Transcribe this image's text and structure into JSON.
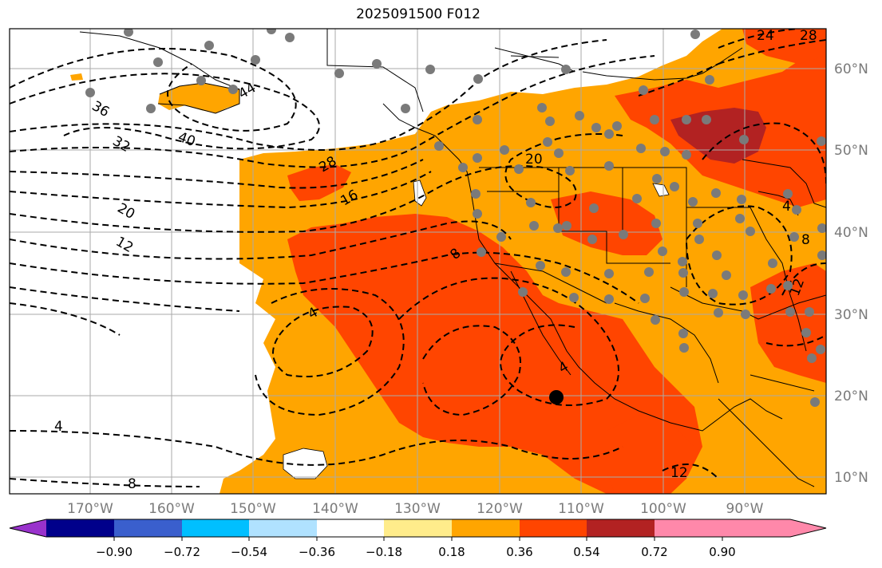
{
  "title": "2025091500 F012",
  "lat_labels": [
    "60°N",
    "50°N",
    "40°N",
    "30°N",
    "20°N",
    "10°N"
  ],
  "lon_labels": [
    "170°W",
    "160°W",
    "150°W",
    "140°W",
    "130°W",
    "120°W",
    "110°W",
    "100°W",
    "90°W"
  ],
  "colorbar": {
    "colors": [
      "#9932cc",
      "#00008b",
      "#3a5fcd",
      "#00bfff",
      "#b0e2ff",
      "#ffffff",
      "#ffec8b",
      "#ffa500",
      "#ff4500",
      "#b22222",
      "#ff88aa"
    ],
    "tick_labels": [
      "−0.90",
      "−0.72",
      "−0.54",
      "−0.36",
      "−0.18",
      "0.18",
      "0.36",
      "0.54",
      "0.72",
      "0.90"
    ]
  },
  "contour_labels": [
    "44",
    "40",
    "36",
    "32",
    "28",
    "20",
    "16",
    "20",
    "12",
    "8",
    "4",
    "4",
    "4",
    "8",
    "12",
    "12",
    "4",
    "8",
    "24",
    "28"
  ],
  "colors": {
    "orange": "#ffa500",
    "red_orange": "#ff4500",
    "dark_red": "#b22222",
    "station_dot": "#7a7a7a",
    "grid": "#aaaaaa"
  }
}
